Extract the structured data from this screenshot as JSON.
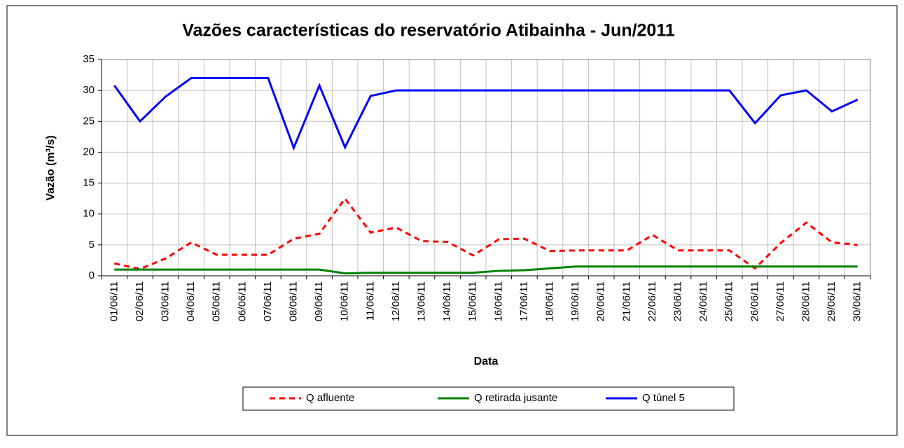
{
  "chart_data": {
    "type": "line",
    "title": "Vazões características do reservatório Atibainha - Jun/2011",
    "x_label": "Data",
    "y_label": "Vazão (m³/s)",
    "categories": [
      "01/06/11",
      "02/06/11",
      "03/06/11",
      "04/06/11",
      "05/06/11",
      "06/06/11",
      "07/06/11",
      "08/06/11",
      "09/06/11",
      "10/06/11",
      "11/06/11",
      "12/06/11",
      "13/06/11",
      "14/06/11",
      "15/06/11",
      "16/06/11",
      "17/06/11",
      "18/06/11",
      "19/06/11",
      "20/06/11",
      "21/06/11",
      "22/06/11",
      "23/06/11",
      "24/06/11",
      "25/06/11",
      "26/06/11",
      "27/06/11",
      "28/06/11",
      "29/06/11",
      "30/06/11"
    ],
    "series": [
      {
        "name": "Q afluente",
        "color": "#ff0000",
        "dashed": true,
        "values": [
          2.0,
          1.1,
          2.8,
          5.4,
          3.4,
          3.4,
          3.4,
          6.0,
          6.8,
          12.5,
          7.0,
          7.8,
          5.6,
          5.5,
          3.3,
          5.9,
          6.0,
          4.0,
          4.1,
          4.1,
          4.1,
          6.6,
          4.1,
          4.1,
          4.1,
          1.2,
          5.3,
          8.6,
          5.4,
          5.0
        ]
      },
      {
        "name": "Q retirada jusante",
        "color": "#008000",
        "values": [
          1.0,
          1.0,
          1.0,
          1.0,
          1.0,
          1.0,
          1.0,
          1.0,
          1.0,
          0.4,
          0.5,
          0.5,
          0.5,
          0.5,
          0.5,
          0.8,
          0.9,
          1.2,
          1.5,
          1.5,
          1.5,
          1.5,
          1.5,
          1.5,
          1.5,
          1.5,
          1.5,
          1.5,
          1.5,
          1.5
        ]
      },
      {
        "name": "Q túnel 5",
        "color": "#0000ff",
        "values": [
          30.8,
          25,
          29,
          32,
          32,
          32,
          32,
          20.7,
          30.8,
          20.8,
          29.1,
          30,
          30,
          30,
          30,
          30,
          30,
          30,
          30,
          30,
          30,
          30,
          30,
          30,
          30,
          24.7,
          29.2,
          30,
          26.6,
          28.5
        ]
      }
    ],
    "ylim": [
      0,
      35
    ],
    "yticks": [
      0,
      5,
      10,
      15,
      20,
      25,
      30,
      35
    ],
    "grid": true,
    "legend": "bottom"
  }
}
